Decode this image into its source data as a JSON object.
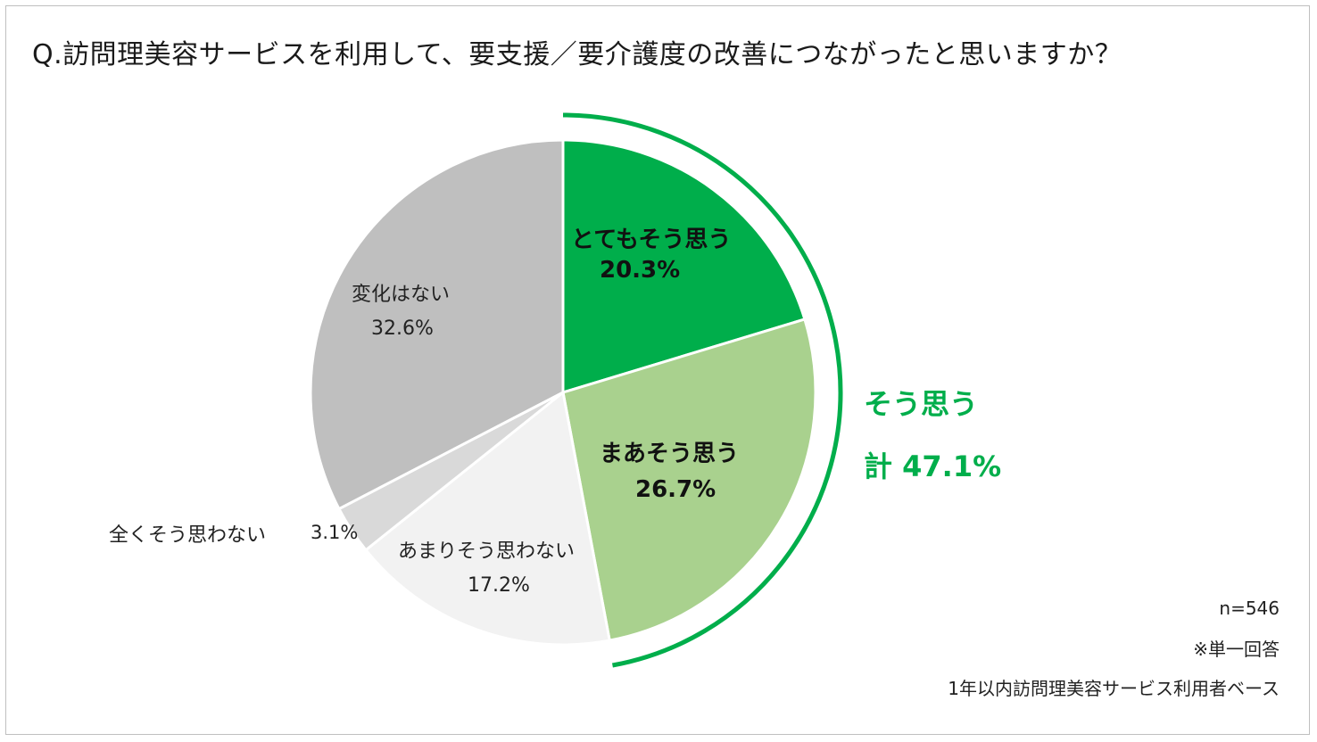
{
  "title": "Q.訪問理美容サービスを利用して、要支援／要介護度の改善につながったと思いますか？",
  "chart_data": {
    "type": "pie",
    "slices": [
      {
        "label": "とてもそう思う",
        "value_label": "20.3%",
        "value": 20.3,
        "color": "#00ae4b"
      },
      {
        "label": "まあそう思う",
        "value_label": "26.7%",
        "value": 26.7,
        "color": "#a9d18e"
      },
      {
        "label": "あまりそう思わない",
        "value_label": "17.2%",
        "value": 17.2,
        "color": "#f2f2f2"
      },
      {
        "label": "全くそう思わない",
        "value_label": "3.1%",
        "value": 3.1,
        "color": "#d9d9d9"
      },
      {
        "label": "変化はない",
        "value_label": "32.6%",
        "value": 32.6,
        "color": "#bfbfbf"
      }
    ],
    "summary": {
      "label": "そう思う",
      "total_label": "計 47.1%",
      "value": 47.1,
      "color": "#00ae4b"
    }
  },
  "notes": {
    "n": "n=546",
    "single": "※単一回答",
    "base": "1年以内訪問理美容サービス利用者ベース"
  }
}
